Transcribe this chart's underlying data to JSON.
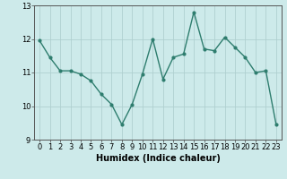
{
  "x": [
    0,
    1,
    2,
    3,
    4,
    5,
    6,
    7,
    8,
    9,
    10,
    11,
    12,
    13,
    14,
    15,
    16,
    17,
    18,
    19,
    20,
    21,
    22,
    23
  ],
  "y": [
    11.95,
    11.45,
    11.05,
    11.05,
    10.95,
    10.75,
    10.35,
    10.05,
    9.45,
    10.05,
    10.95,
    12.0,
    10.8,
    11.45,
    11.55,
    12.8,
    11.7,
    11.65,
    12.05,
    11.75,
    11.45,
    11.0,
    11.05,
    9.45
  ],
  "line_color": "#2e7d6e",
  "marker": "o",
  "markersize": 2.0,
  "linewidth": 1.0,
  "bg_color": "#cdeaea",
  "grid_color": "#b0d0d0",
  "xlabel": "Humidex (Indice chaleur)",
  "xlabel_fontsize": 7,
  "tick_fontsize": 6,
  "xlim": [
    -0.5,
    23.5
  ],
  "ylim": [
    9.0,
    13.0
  ],
  "yticks": [
    9,
    10,
    11,
    12,
    13
  ],
  "xticks": [
    0,
    1,
    2,
    3,
    4,
    5,
    6,
    7,
    8,
    9,
    10,
    11,
    12,
    13,
    14,
    15,
    16,
    17,
    18,
    19,
    20,
    21,
    22,
    23
  ]
}
